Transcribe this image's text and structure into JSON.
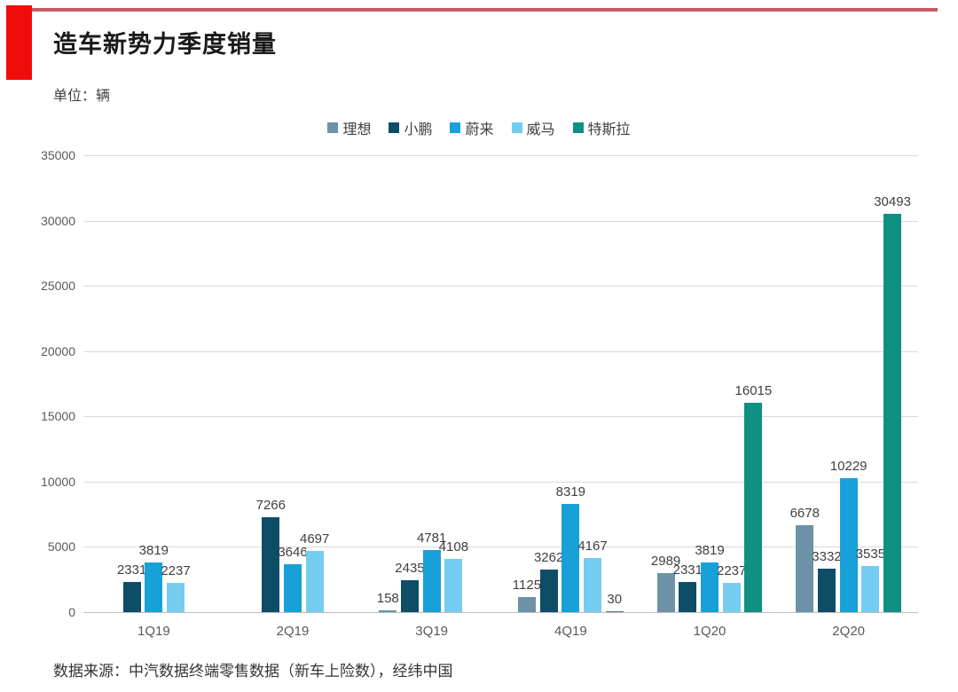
{
  "header": {
    "title": "造车新势力季度销量",
    "unit_label": "单位：辆"
  },
  "footer": {
    "source": "数据来源：中汽数据终端零售数据（新车上险数），经纬中国"
  },
  "accent": {
    "top_line_color": "#c65a62",
    "block_color": "#f10c0c"
  },
  "chart_data": {
    "type": "bar",
    "title": "造车新势力季度销量",
    "unit": "辆",
    "categories": [
      "1Q19",
      "2Q19",
      "3Q19",
      "4Q19",
      "1Q20",
      "2Q20"
    ],
    "series": [
      {
        "name": "理想",
        "color": "#6b92a7",
        "values": [
          null,
          null,
          158,
          1125,
          2989,
          6678
        ]
      },
      {
        "name": "小鹏",
        "color": "#0d4d66",
        "values": [
          2331,
          7266,
          2435,
          3262,
          2331,
          3332
        ]
      },
      {
        "name": "蔚来",
        "color": "#18a0d8",
        "values": [
          3819,
          3646,
          4781,
          8319,
          3819,
          10229
        ]
      },
      {
        "name": "威马",
        "color": "#74cdf1",
        "values": [
          2237,
          4697,
          4108,
          4167,
          2237,
          3535
        ]
      },
      {
        "name": "特斯拉",
        "color": "#0e9083",
        "values": [
          null,
          null,
          null,
          30,
          16015,
          30493
        ]
      }
    ],
    "ylim": [
      0,
      35000
    ],
    "ytick_step": 5000,
    "yticks": [
      0,
      5000,
      10000,
      15000,
      20000,
      25000,
      30000,
      35000
    ],
    "grid": "horizontal",
    "legend_position": "top-center",
    "bar_value_labels": true
  }
}
